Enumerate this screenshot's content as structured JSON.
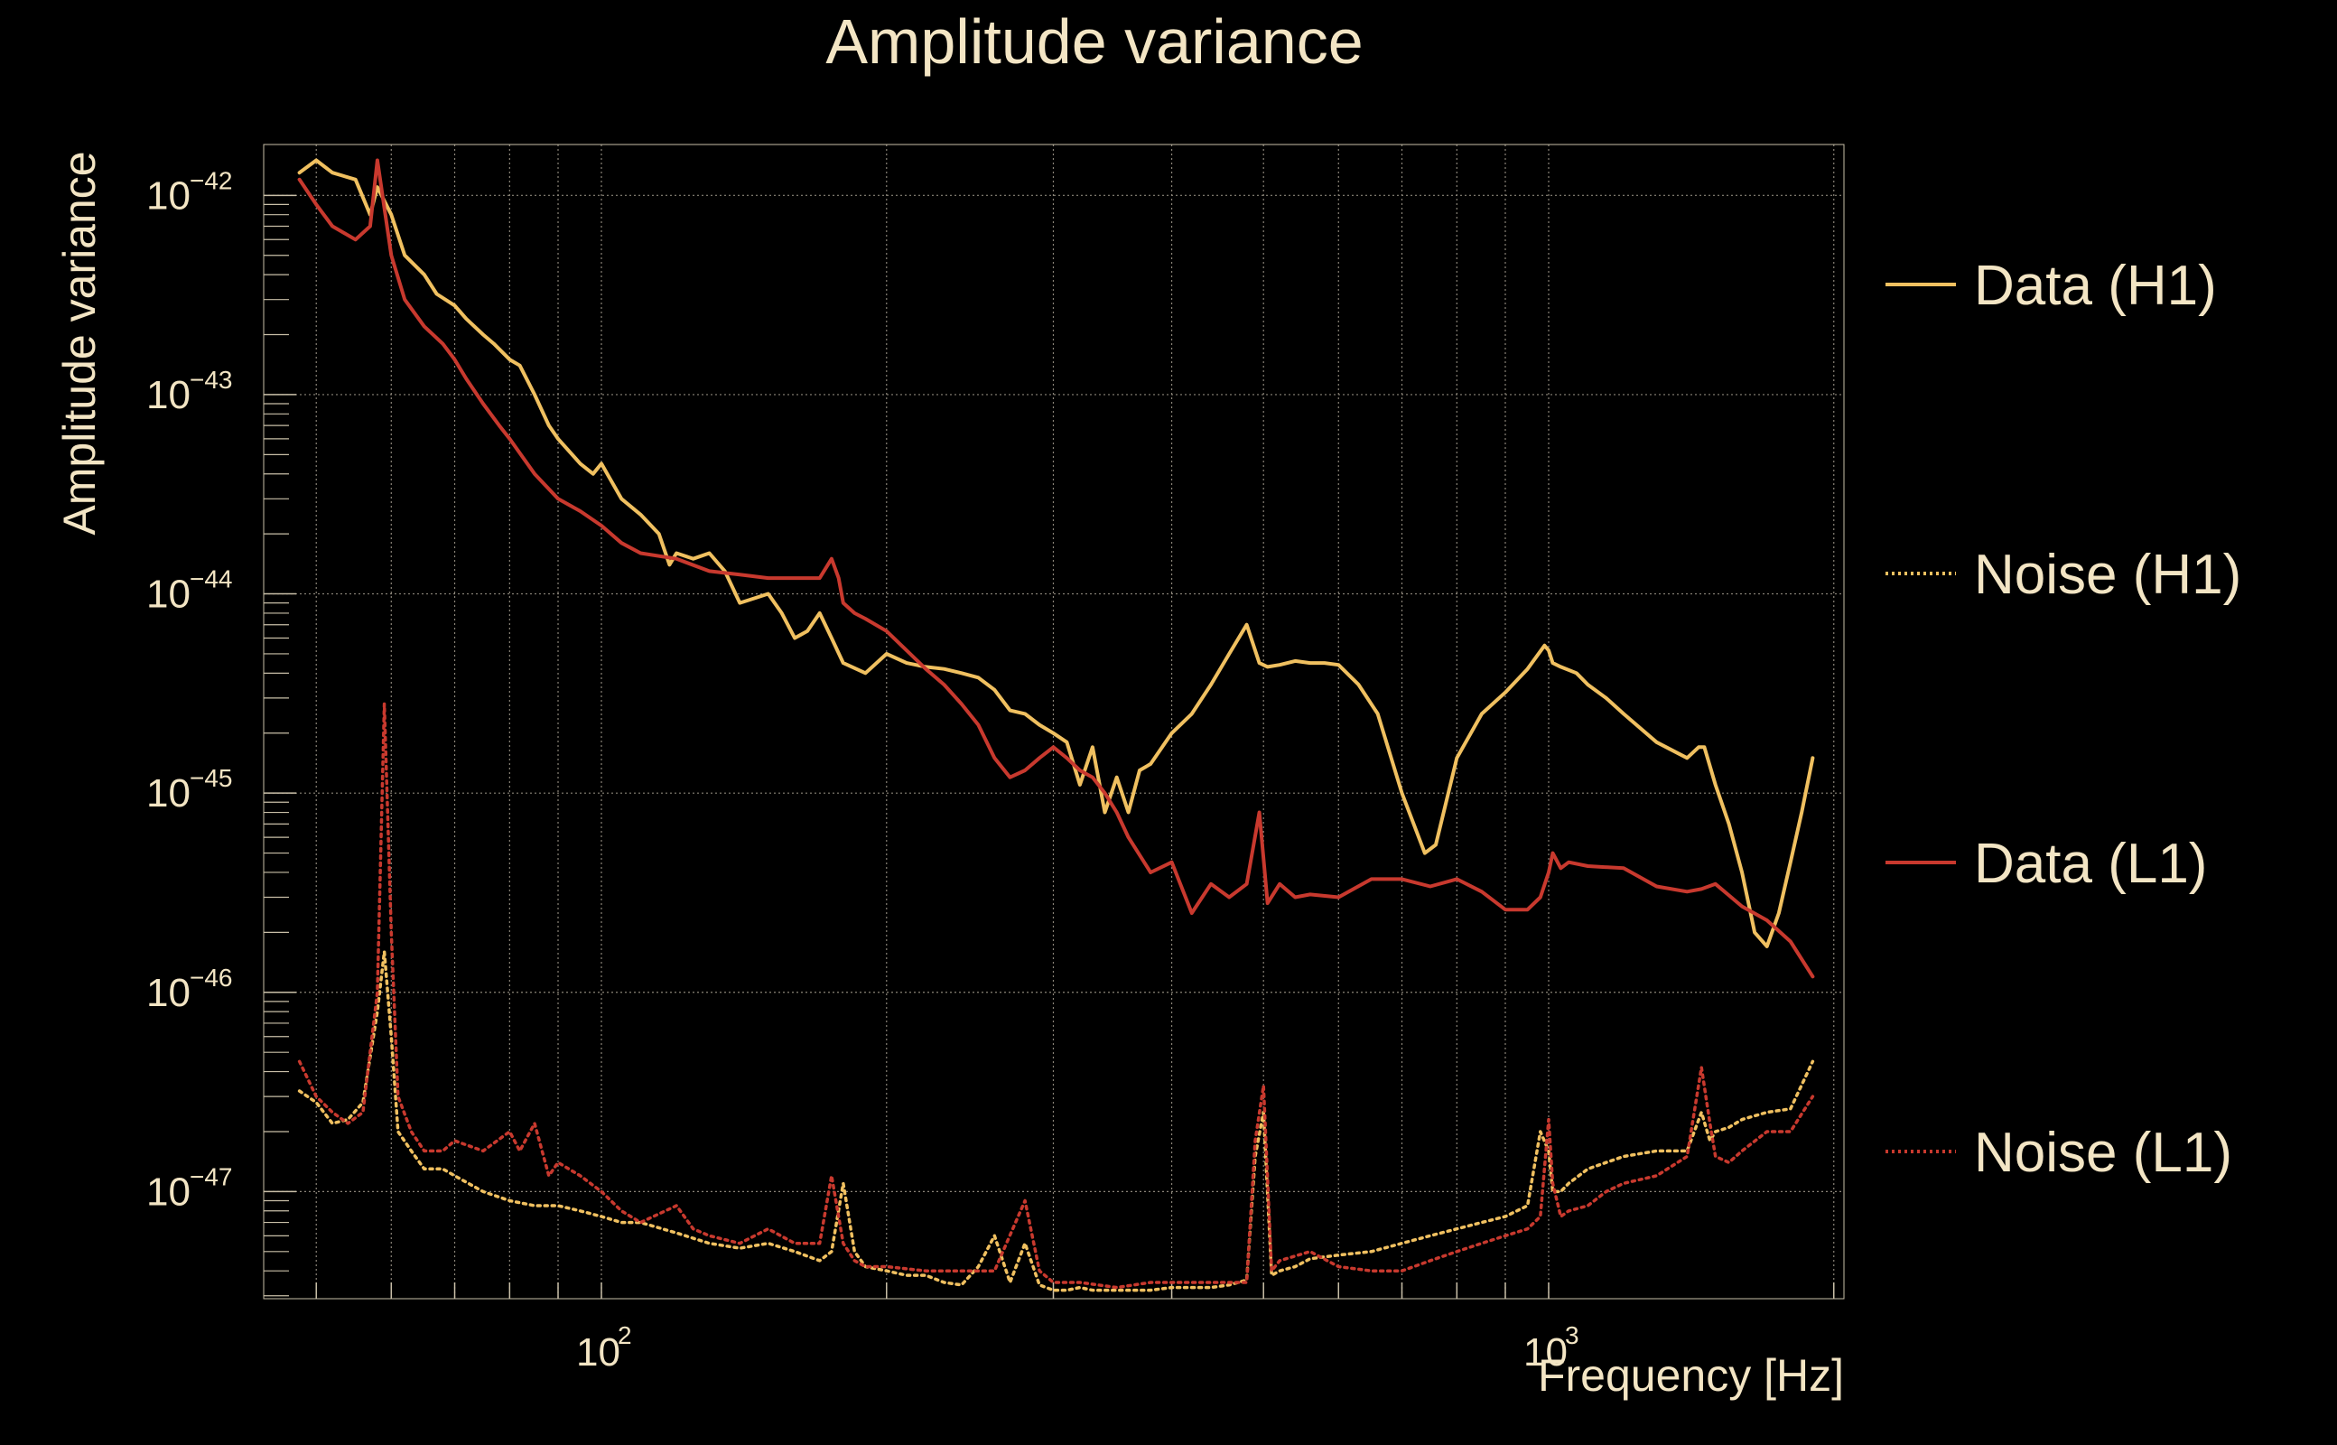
{
  "chart_data": {
    "type": "line",
    "title": "Amplitude variance",
    "xlabel": "Frequency [Hz]",
    "ylabel": "Amplitude variance",
    "xscale": "log",
    "yscale": "log",
    "xlim": [
      44,
      2050
    ],
    "ylim": [
      2.9e-48,
      1.8e-42
    ],
    "grid": true,
    "grid_style": "dotted",
    "legend_placement": "right",
    "background": "#000000",
    "foreground": "#f3e5c4",
    "x_ticks": [
      {
        "base": "10",
        "exp": "2",
        "value": 100
      },
      {
        "base": "10",
        "exp": "3",
        "value": 1000
      }
    ],
    "y_ticks": [
      {
        "base": "10",
        "exp": "−42",
        "value": 1e-42
      },
      {
        "base": "10",
        "exp": "−43",
        "value": 1e-43
      },
      {
        "base": "10",
        "exp": "−44",
        "value": 1e-44
      },
      {
        "base": "10",
        "exp": "−45",
        "value": 1e-45
      },
      {
        "base": "10",
        "exp": "−46",
        "value": 1e-46
      },
      {
        "base": "10",
        "exp": "−47",
        "value": 1e-47
      }
    ],
    "series": [
      {
        "name": "Data (H1)",
        "color": "#f0c060",
        "style": "solid",
        "x": [
          48,
          50,
          52,
          55,
          57,
          58,
          60,
          62,
          65,
          67,
          70,
          72,
          75,
          77,
          80,
          82,
          85,
          88,
          90,
          95,
          98,
          100,
          105,
          110,
          115,
          118,
          120,
          125,
          130,
          135,
          140,
          145,
          150,
          155,
          160,
          165,
          170,
          175,
          180,
          190,
          200,
          210,
          220,
          230,
          240,
          250,
          260,
          270,
          280,
          290,
          300,
          310,
          320,
          330,
          340,
          350,
          360,
          370,
          380,
          400,
          420,
          440,
          460,
          480,
          495,
          505,
          520,
          540,
          560,
          580,
          600,
          630,
          660,
          700,
          740,
          760,
          800,
          850,
          900,
          950,
          990,
          1000,
          1010,
          1030,
          1070,
          1100,
          1150,
          1200,
          1300,
          1400,
          1440,
          1460,
          1500,
          1550,
          1600,
          1650,
          1700,
          1750,
          1800,
          1850,
          1900
        ],
        "y": [
          1.3e-42,
          1.5e-42,
          1.3e-42,
          1.2e-42,
          8e-43,
          1.1e-42,
          8e-43,
          5e-43,
          4e-43,
          3.2e-43,
          2.8e-43,
          2.4e-43,
          2e-43,
          1.8e-43,
          1.5e-43,
          1.4e-43,
          1e-43,
          7e-44,
          6e-44,
          4.5e-44,
          4e-44,
          4.5e-44,
          3e-44,
          2.5e-44,
          2e-44,
          1.4e-44,
          1.6e-44,
          1.5e-44,
          1.6e-44,
          1.3e-44,
          9e-45,
          9.5e-45,
          1e-44,
          8e-45,
          6e-45,
          6.5e-45,
          8e-45,
          6e-45,
          4.5e-45,
          4e-45,
          5e-45,
          4.5e-45,
          4.3e-45,
          4.2e-45,
          4e-45,
          3.8e-45,
          3.3e-45,
          2.6e-45,
          2.5e-45,
          2.2e-45,
          2e-45,
          1.8e-45,
          1.1e-45,
          1.7e-45,
          8e-46,
          1.2e-45,
          8e-46,
          1.3e-45,
          1.4e-45,
          2e-45,
          2.5e-45,
          3.5e-45,
          5e-45,
          7e-45,
          4.5e-45,
          4.3e-45,
          4.4e-45,
          4.6e-45,
          4.5e-45,
          4.5e-45,
          4.4e-45,
          3.5e-45,
          2.5e-45,
          1e-45,
          5e-46,
          5.5e-46,
          1.5e-45,
          2.5e-45,
          3.2e-45,
          4.2e-45,
          5.5e-45,
          5.2e-45,
          4.5e-45,
          4.3e-45,
          4e-45,
          3.5e-45,
          3e-45,
          2.5e-45,
          1.8e-45,
          1.5e-45,
          1.7e-45,
          1.7e-45,
          1.1e-45,
          7e-46,
          4e-46,
          2e-46,
          1.7e-46,
          2.5e-46,
          4.5e-46,
          8e-46,
          1.5e-45
        ]
      },
      {
        "name": "Noise (H1)",
        "color": "#f0c060",
        "style": "dotted",
        "x": [
          48,
          50,
          52,
          54,
          56,
          58,
          59,
          60,
          61,
          63,
          65,
          68,
          70,
          75,
          80,
          85,
          90,
          95,
          100,
          105,
          110,
          120,
          130,
          140,
          150,
          160,
          170,
          175,
          180,
          185,
          190,
          200,
          210,
          220,
          230,
          240,
          250,
          260,
          270,
          280,
          290,
          300,
          310,
          320,
          330,
          350,
          380,
          400,
          420,
          440,
          460,
          480,
          490,
          500,
          510,
          520,
          540,
          560,
          600,
          650,
          700,
          750,
          800,
          850,
          900,
          950,
          980,
          1000,
          1010,
          1030,
          1050,
          1100,
          1150,
          1200,
          1300,
          1400,
          1450,
          1480,
          1500,
          1550,
          1600,
          1700,
          1800,
          1900
        ],
        "y": [
          3.2e-47,
          2.8e-47,
          2.2e-47,
          2.3e-47,
          2.8e-47,
          8e-47,
          1.6e-46,
          6e-47,
          2e-47,
          1.6e-47,
          1.3e-47,
          1.3e-47,
          1.2e-47,
          1e-47,
          9e-48,
          8.5e-48,
          8.5e-48,
          8e-48,
          7.5e-48,
          7e-48,
          7e-48,
          6.2e-48,
          5.5e-48,
          5.2e-48,
          5.5e-48,
          5e-48,
          4.5e-48,
          5e-48,
          1.1e-47,
          5e-48,
          4.2e-48,
          4e-48,
          3.8e-48,
          3.8e-48,
          3.5e-48,
          3.4e-48,
          4.2e-48,
          6e-48,
          3.5e-48,
          5.5e-48,
          3.4e-48,
          3.2e-48,
          3.2e-48,
          3.3e-48,
          3.2e-48,
          3.2e-48,
          3.2e-48,
          3.3e-48,
          3.3e-48,
          3.3e-48,
          3.4e-48,
          3.6e-48,
          1.5e-47,
          2.5e-47,
          3.8e-48,
          4e-48,
          4.2e-48,
          4.6e-48,
          4.8e-48,
          5e-48,
          5.5e-48,
          6e-48,
          6.5e-48,
          7e-48,
          7.5e-48,
          8.5e-48,
          2e-47,
          1.6e-47,
          1e-47,
          1e-47,
          1.1e-47,
          1.3e-47,
          1.4e-47,
          1.5e-47,
          1.6e-47,
          1.6e-47,
          2.5e-47,
          1.8e-47,
          2e-47,
          2.1e-47,
          2.3e-47,
          2.5e-47,
          2.6e-47,
          4.5e-47
        ]
      },
      {
        "name": "Data (L1)",
        "color": "#c8392e",
        "style": "solid",
        "x": [
          48,
          50,
          52,
          55,
          57,
          58,
          60,
          62,
          65,
          68,
          70,
          72,
          75,
          78,
          80,
          85,
          90,
          95,
          100,
          105,
          110,
          120,
          130,
          140,
          150,
          160,
          170,
          175,
          178,
          180,
          185,
          190,
          200,
          210,
          220,
          230,
          240,
          250,
          260,
          270,
          280,
          290,
          300,
          310,
          320,
          330,
          340,
          350,
          360,
          380,
          400,
          420,
          440,
          460,
          480,
          495,
          505,
          520,
          540,
          560,
          600,
          650,
          700,
          750,
          800,
          850,
          900,
          950,
          980,
          1000,
          1010,
          1030,
          1050,
          1100,
          1200,
          1300,
          1400,
          1450,
          1500,
          1600,
          1700,
          1800,
          1900
        ],
        "y": [
          1.2e-42,
          9e-43,
          7e-43,
          6e-43,
          7e-43,
          1.5e-42,
          5e-43,
          3e-43,
          2.2e-43,
          1.8e-43,
          1.5e-43,
          1.2e-43,
          9e-44,
          7e-44,
          6e-44,
          4e-44,
          3e-44,
          2.6e-44,
          2.2e-44,
          1.8e-44,
          1.6e-44,
          1.5e-44,
          1.3e-44,
          1.25e-44,
          1.2e-44,
          1.2e-44,
          1.2e-44,
          1.5e-44,
          1.2e-44,
          9e-45,
          8e-45,
          7.5e-45,
          6.5e-45,
          5.2e-45,
          4.2e-45,
          3.5e-45,
          2.8e-45,
          2.2e-45,
          1.5e-45,
          1.2e-45,
          1.3e-45,
          1.5e-45,
          1.7e-45,
          1.5e-45,
          1.3e-45,
          1.2e-45,
          1e-45,
          8e-46,
          6e-46,
          4e-46,
          4.5e-46,
          2.5e-46,
          3.5e-46,
          3e-46,
          3.5e-46,
          8e-46,
          2.8e-46,
          3.5e-46,
          3e-46,
          3.1e-46,
          3e-46,
          3.7e-46,
          3.7e-46,
          3.4e-46,
          3.7e-46,
          3.2e-46,
          2.6e-46,
          2.6e-46,
          3e-46,
          4e-46,
          5e-46,
          4.2e-46,
          4.5e-46,
          4.3e-46,
          4.2e-46,
          3.4e-46,
          3.2e-46,
          3.3e-46,
          3.5e-46,
          2.7e-46,
          2.3e-46,
          1.8e-46,
          1.2e-46
        ]
      },
      {
        "name": "Noise (L1)",
        "color": "#c8392e",
        "style": "dotted",
        "x": [
          48,
          50,
          52,
          54,
          56,
          58,
          59,
          60,
          61,
          63,
          65,
          68,
          70,
          75,
          80,
          82,
          85,
          88,
          90,
          95,
          100,
          105,
          110,
          120,
          125,
          130,
          140,
          150,
          160,
          170,
          175,
          180,
          185,
          190,
          200,
          220,
          240,
          260,
          280,
          290,
          300,
          310,
          320,
          350,
          380,
          400,
          440,
          480,
          490,
          500,
          510,
          520,
          560,
          600,
          650,
          700,
          750,
          800,
          850,
          900,
          950,
          980,
          1000,
          1010,
          1030,
          1050,
          1100,
          1150,
          1200,
          1300,
          1400,
          1450,
          1480,
          1500,
          1550,
          1600,
          1700,
          1800,
          1900
        ],
        "y": [
          4.5e-47,
          3e-47,
          2.5e-47,
          2.2e-47,
          2.5e-47,
          1e-46,
          2.8e-45,
          2e-46,
          3e-47,
          2e-47,
          1.6e-47,
          1.6e-47,
          1.8e-47,
          1.6e-47,
          2e-47,
          1.6e-47,
          2.2e-47,
          1.2e-47,
          1.4e-47,
          1.2e-47,
          1e-47,
          8e-48,
          7e-48,
          8.5e-48,
          6.5e-48,
          6e-48,
          5.5e-48,
          6.5e-48,
          5.5e-48,
          5.5e-48,
          1.2e-47,
          5.5e-48,
          4.5e-48,
          4.2e-48,
          4.2e-48,
          4e-48,
          4e-48,
          4e-48,
          9e-48,
          4e-48,
          3.5e-48,
          3.5e-48,
          3.5e-48,
          3.3e-48,
          3.5e-48,
          3.5e-48,
          3.5e-48,
          3.5e-48,
          1.8e-47,
          3.4e-47,
          4e-48,
          4.5e-48,
          5e-48,
          4.2e-48,
          4e-48,
          4e-48,
          4.5e-48,
          5e-48,
          5.5e-48,
          6e-48,
          6.5e-48,
          7.5e-48,
          2.3e-47,
          1.1e-47,
          7.5e-48,
          8e-48,
          8.5e-48,
          1e-47,
          1.1e-47,
          1.2e-47,
          1.5e-47,
          4.2e-47,
          2.2e-47,
          1.5e-47,
          1.4e-47,
          1.6e-47,
          2e-47,
          2e-47,
          3e-47
        ]
      }
    ]
  }
}
